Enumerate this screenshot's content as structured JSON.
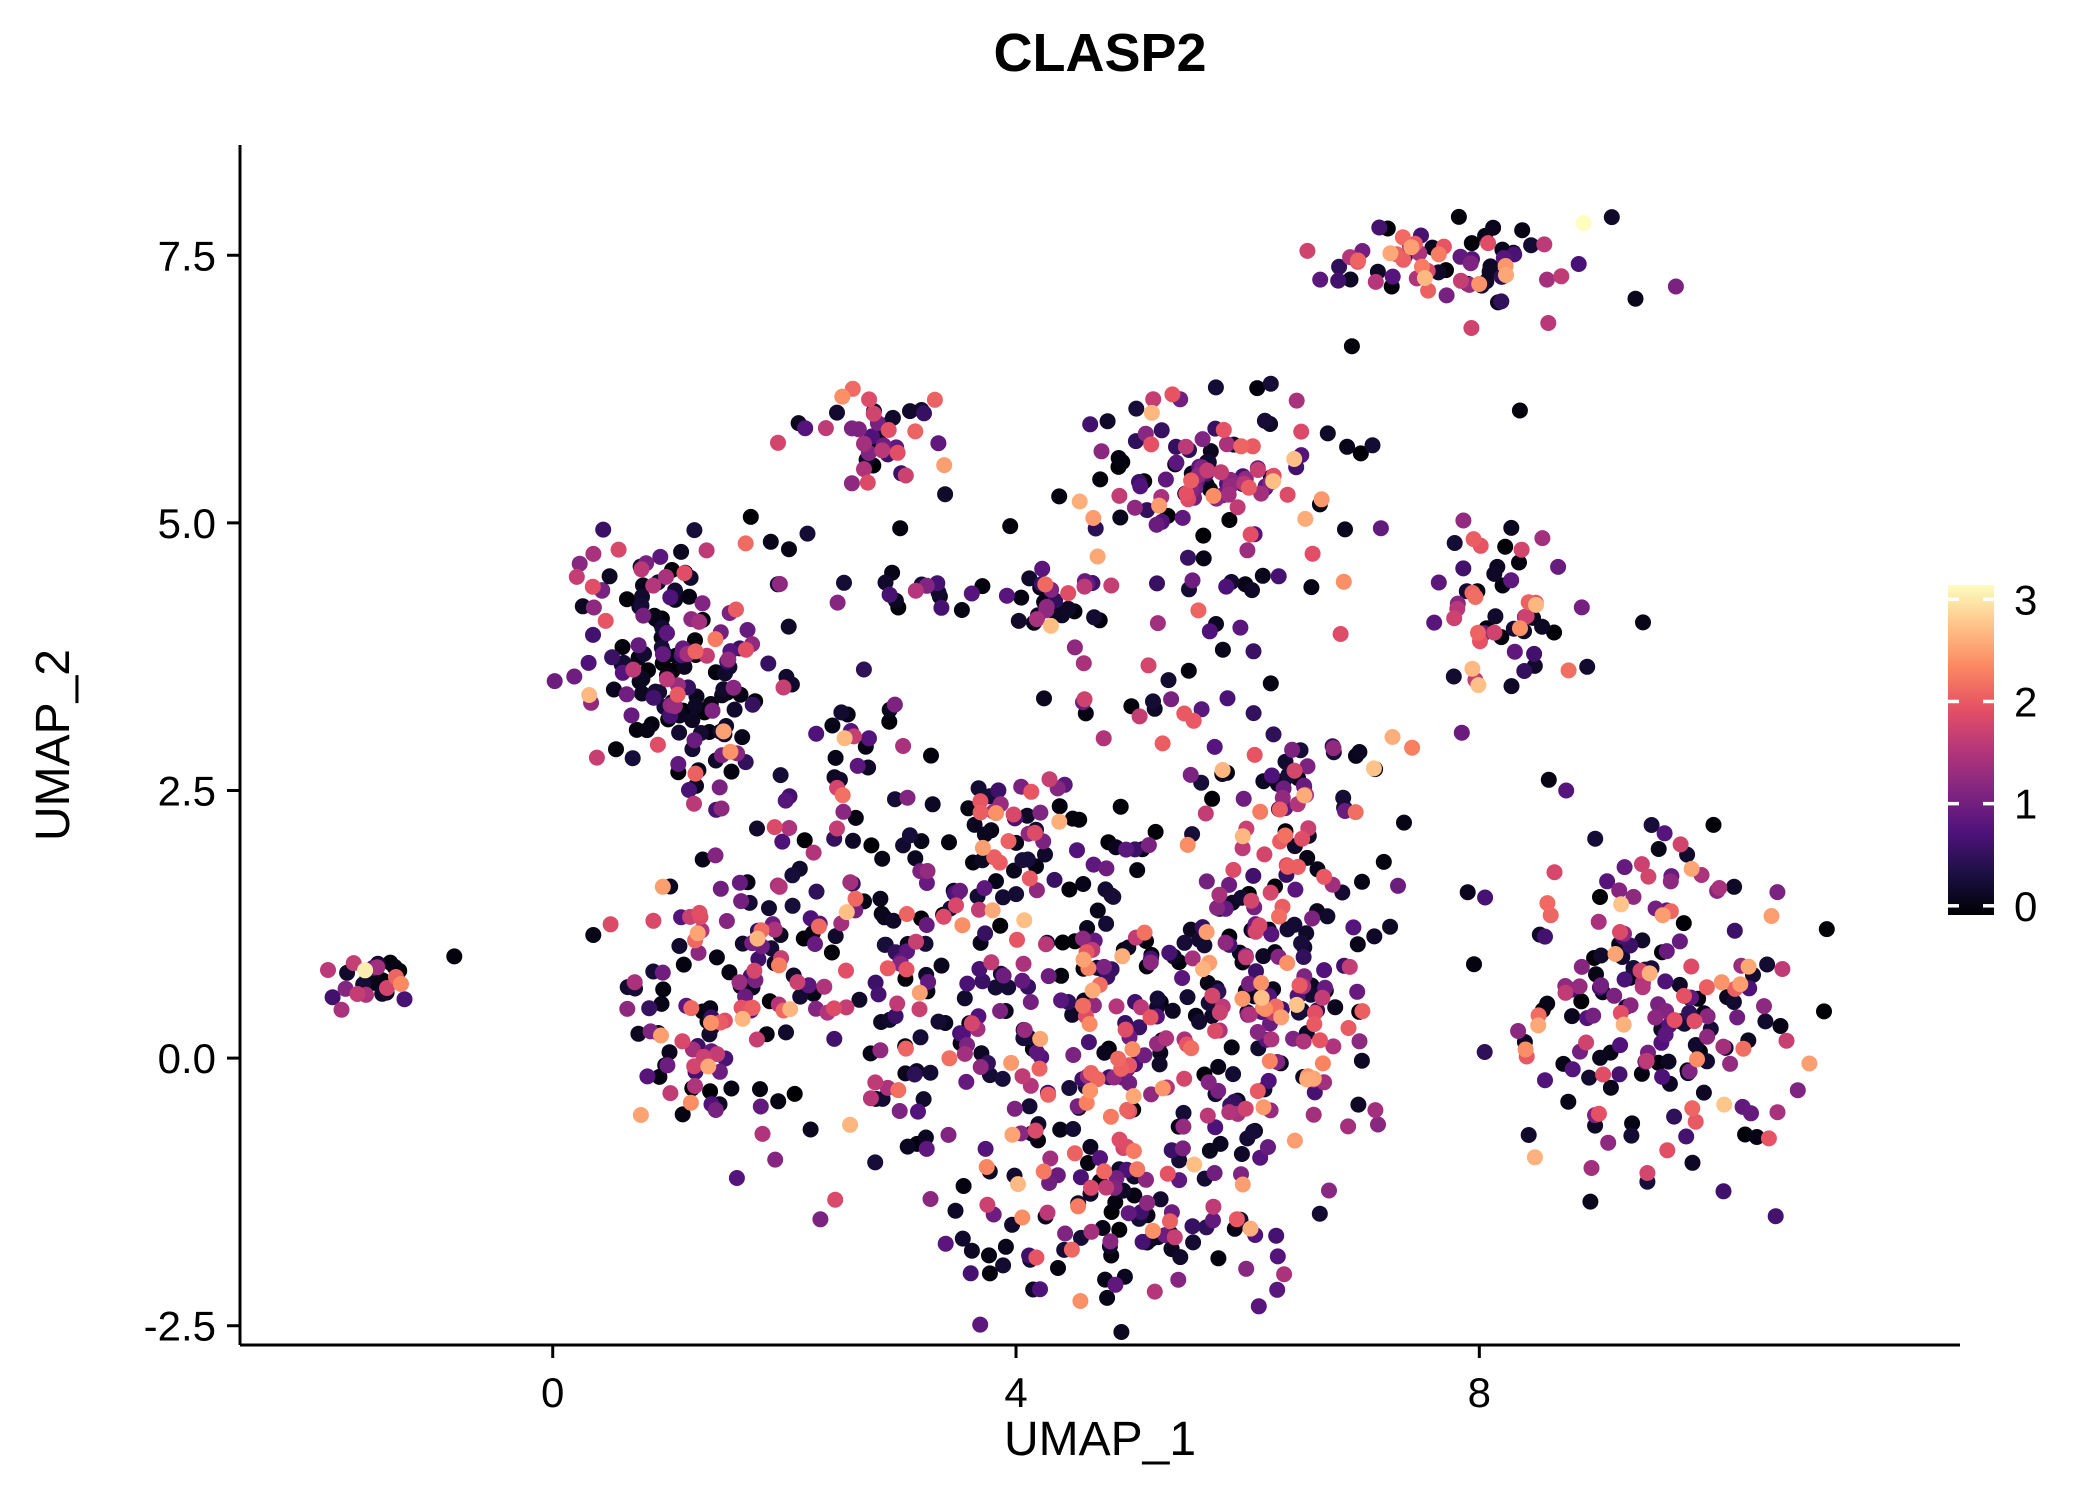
{
  "chart_data": {
    "type": "scatter",
    "title": "CLASP2",
    "xlabel": "UMAP_1",
    "ylabel": "UMAP_2",
    "xlim": [
      -2.7,
      12.15
    ],
    "ylim": [
      -2.68,
      8.53
    ],
    "x_ticks": [
      0,
      4,
      8
    ],
    "x_tick_labels": [
      "0",
      "4",
      "8"
    ],
    "y_ticks": [
      -2.5,
      0.0,
      2.5,
      5.0,
      7.5
    ],
    "y_tick_labels": [
      "-2.5",
      "0.0",
      "2.5",
      "5.0",
      "7.5"
    ],
    "grid": false,
    "legend_position": "right",
    "colorbar": {
      "domain": [
        0,
        3
      ],
      "ticks": [
        0,
        1,
        2,
        3
      ],
      "tick_labels": [
        "0",
        "1",
        "2",
        "3"
      ],
      "palette_name": "magma",
      "stops": [
        "#000004",
        "#1c1044",
        "#4f127b",
        "#812581",
        "#b5367a",
        "#e55064",
        "#fb8761",
        "#fec287",
        "#fcfdbf"
      ]
    },
    "point_radius": 8,
    "render_seed": 12,
    "clusters": [
      {
        "cx": -1.55,
        "cy": 0.7,
        "sx": 0.16,
        "sy": 0.12,
        "n": 24,
        "mix": [
          0.3,
          0.35,
          0.3,
          0.05
        ]
      },
      {
        "cx": 1.05,
        "cy": 3.9,
        "sx": 0.42,
        "sy": 0.5,
        "n": 140,
        "mix": [
          0.52,
          0.3,
          0.15,
          0.03
        ]
      },
      {
        "cx": 1.35,
        "cy": 2.95,
        "sx": 0.25,
        "sy": 0.3,
        "n": 30,
        "mix": [
          0.45,
          0.3,
          0.2,
          0.05
        ]
      },
      {
        "cx": 2.75,
        "cy": 5.72,
        "sx": 0.27,
        "sy": 0.24,
        "n": 38,
        "mix": [
          0.3,
          0.3,
          0.3,
          0.1
        ]
      },
      {
        "cx": 5.75,
        "cy": 5.45,
        "sx": 0.45,
        "sy": 0.4,
        "n": 115,
        "mix": [
          0.28,
          0.47,
          0.2,
          0.05
        ]
      },
      {
        "cx": 5.7,
        "cy": 4.25,
        "sx": 0.35,
        "sy": 0.25,
        "n": 15,
        "mix": [
          0.5,
          0.3,
          0.15,
          0.05
        ]
      },
      {
        "cx": 7.8,
        "cy": 7.45,
        "sx": 0.5,
        "sy": 0.24,
        "n": 72,
        "mix": [
          0.35,
          0.3,
          0.28,
          0.07
        ]
      },
      {
        "cx": 8.2,
        "cy": 4.2,
        "sx": 0.38,
        "sy": 0.38,
        "n": 58,
        "mix": [
          0.3,
          0.35,
          0.25,
          0.1
        ]
      },
      {
        "cx": 3.2,
        "cy": 4.35,
        "sx": 0.65,
        "sy": 0.12,
        "n": 22,
        "mix": [
          0.45,
          0.3,
          0.2,
          0.05
        ]
      },
      {
        "cx": 4.55,
        "cy": 4.25,
        "sx": 0.25,
        "sy": 0.18,
        "n": 28,
        "mix": [
          0.35,
          0.3,
          0.25,
          0.1
        ]
      },
      {
        "cx": 2.6,
        "cy": 2.9,
        "sx": 0.3,
        "sy": 0.3,
        "n": 24,
        "mix": [
          0.45,
          0.3,
          0.2,
          0.05
        ]
      },
      {
        "cx": 2.0,
        "cy": 1.4,
        "sx": 0.5,
        "sy": 0.55,
        "n": 85,
        "mix": [
          0.42,
          0.33,
          0.2,
          0.05
        ]
      },
      {
        "cx": 1.35,
        "cy": 0.15,
        "sx": 0.35,
        "sy": 0.5,
        "n": 65,
        "mix": [
          0.45,
          0.33,
          0.17,
          0.05
        ]
      },
      {
        "cx": 3.2,
        "cy": 0.3,
        "sx": 0.6,
        "sy": 0.75,
        "n": 105,
        "mix": [
          0.4,
          0.35,
          0.2,
          0.05
        ]
      },
      {
        "cx": 4.6,
        "cy": 0.3,
        "sx": 0.65,
        "sy": 0.85,
        "n": 160,
        "mix": [
          0.35,
          0.35,
          0.22,
          0.08
        ]
      },
      {
        "cx": 5.8,
        "cy": 0.2,
        "sx": 0.55,
        "sy": 0.85,
        "n": 140,
        "mix": [
          0.4,
          0.33,
          0.2,
          0.07
        ]
      },
      {
        "cx": 4.8,
        "cy": -1.5,
        "sx": 0.75,
        "sy": 0.33,
        "n": 85,
        "mix": [
          0.4,
          0.35,
          0.2,
          0.05
        ]
      },
      {
        "cx": 3.9,
        "cy": 2.0,
        "sx": 0.75,
        "sy": 0.38,
        "n": 75,
        "mix": [
          0.45,
          0.3,
          0.2,
          0.05
        ]
      },
      {
        "cx": 6.3,
        "cy": 2.3,
        "sx": 0.4,
        "sy": 0.45,
        "n": 60,
        "mix": [
          0.35,
          0.35,
          0.2,
          0.1
        ]
      },
      {
        "cx": 6.5,
        "cy": 0.8,
        "sx": 0.42,
        "sy": 0.65,
        "n": 75,
        "mix": [
          0.4,
          0.33,
          0.2,
          0.07
        ]
      },
      {
        "cx": 5.0,
        "cy": 3.3,
        "sx": 0.5,
        "sy": 0.28,
        "n": 18,
        "mix": [
          0.4,
          0.3,
          0.25,
          0.05
        ]
      },
      {
        "cx": 9.5,
        "cy": 0.45,
        "sx": 0.62,
        "sy": 0.72,
        "n": 185,
        "mix": [
          0.38,
          0.32,
          0.22,
          0.08
        ]
      }
    ],
    "outlier_points": [
      [
        -0.85,
        0.95,
        0.05
      ],
      [
        -1.62,
        0.82,
        2.9
      ],
      [
        -1.28,
        0.55,
        0.7
      ],
      [
        3.0,
        4.95,
        0.05
      ],
      [
        3.95,
        4.97,
        0.05
      ],
      [
        2.2,
        4.9,
        0.3
      ],
      [
        2.5,
        6.18,
        2.3
      ],
      [
        3.3,
        6.15,
        2.0
      ],
      [
        3.38,
        5.54,
        2.4
      ],
      [
        4.55,
        5.2,
        2.5
      ],
      [
        5.35,
        6.2,
        1.9
      ],
      [
        6.2,
        6.3,
        0.3
      ],
      [
        6.9,
        6.65,
        0.05
      ],
      [
        8.35,
        6.05,
        0.05
      ],
      [
        8.9,
        7.8,
        3.0
      ],
      [
        7.15,
        4.95,
        0.9
      ],
      [
        6.55,
        4.4,
        0.1
      ],
      [
        6.83,
        4.45,
        2.3
      ],
      [
        7.25,
        3.0,
        2.5
      ],
      [
        7.42,
        2.9,
        2.2
      ],
      [
        7.1,
        2.7,
        0.1
      ],
      [
        7.35,
        2.2,
        0.1
      ],
      [
        7.9,
        1.55,
        0.15
      ],
      [
        8.05,
        1.5,
        0.7
      ],
      [
        8.6,
        2.6,
        0.1
      ],
      [
        8.75,
        2.5,
        0.8
      ],
      [
        9.0,
        2.05,
        0.3
      ],
      [
        9.6,
        2.1,
        0.8
      ],
      [
        10.2,
        1.6,
        0.2
      ],
      [
        10.6,
        0.3,
        0.1
      ],
      [
        10.75,
        -0.3,
        1.1
      ],
      [
        10.5,
        -0.75,
        1.9
      ],
      [
        10.85,
        -0.05,
        2.4
      ],
      [
        0.35,
        1.15,
        0.1
      ],
      [
        0.5,
        1.25,
        1.8
      ],
      [
        0.95,
        1.6,
        2.4
      ],
      [
        6.05,
        3.8,
        0.6
      ],
      [
        6.2,
        3.5,
        0.1
      ],
      [
        4.9,
        5.05,
        0.15
      ]
    ]
  }
}
